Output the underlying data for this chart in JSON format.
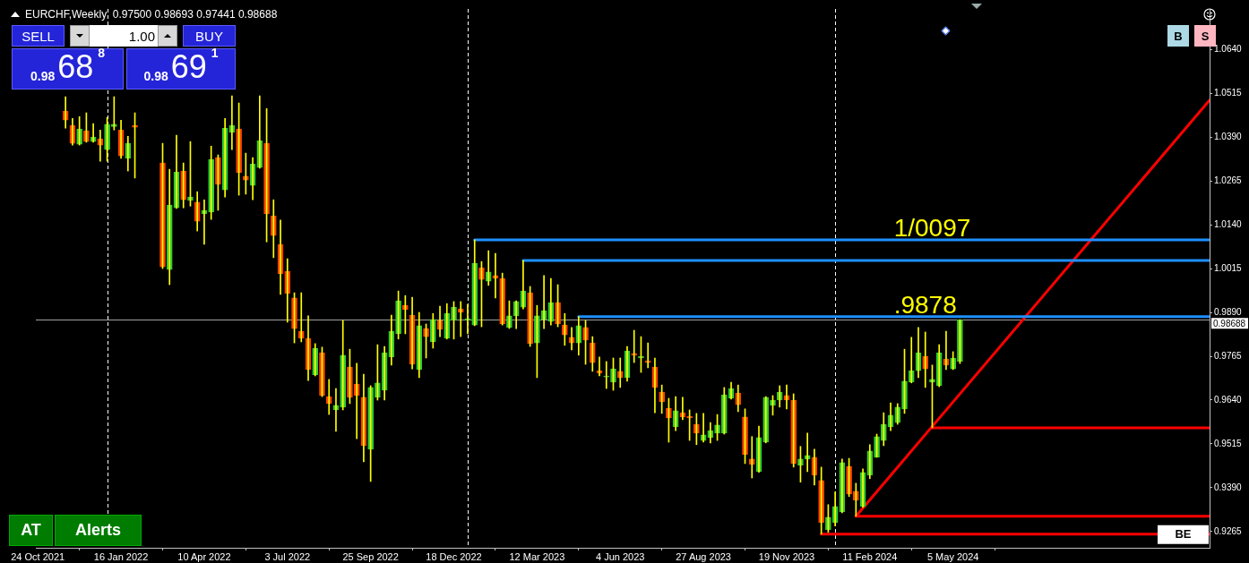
{
  "chart_data": {
    "type": "candlestick",
    "title": "EURCHF,Weekly  0.97500 0.98693 0.97441 0.98688",
    "color": "#ffff00",
    "x": [
      "2021-11-21",
      "2021-11-28",
      "2021-12-05",
      "2021-12-12",
      "2021-12-19",
      "2021-12-26",
      "2022-01-02",
      "2022-01-09",
      "2022-01-16",
      "2022-01-23",
      "2022-01-30",
      "2022-02-27",
      "2022-03-06",
      "2022-03-13",
      "2022-03-20",
      "2022-03-27",
      "2022-04-03",
      "2022-04-10",
      "2022-04-17",
      "2022-04-24",
      "2022-05-01",
      "2022-05-08",
      "2022-05-15",
      "2022-05-22",
      "2022-05-29",
      "2022-06-05",
      "2022-06-12",
      "2022-06-19",
      "2022-06-26",
      "2022-07-03",
      "2022-07-10",
      "2022-07-17",
      "2022-07-24",
      "2022-07-31",
      "2022-08-07",
      "2022-08-14",
      "2022-08-21",
      "2022-08-28",
      "2022-09-04",
      "2022-09-11",
      "2022-09-18",
      "2022-09-25",
      "2022-10-02",
      "2022-10-09",
      "2022-10-16",
      "2022-10-23",
      "2022-10-30",
      "2022-11-06",
      "2022-11-13",
      "2022-11-20",
      "2022-11-27",
      "2022-12-04",
      "2022-12-11",
      "2022-12-18",
      "2022-12-25",
      "2023-01-01",
      "2023-01-08",
      "2023-01-15",
      "2023-01-22",
      "2023-01-29",
      "2023-02-05",
      "2023-02-12",
      "2023-02-19",
      "2023-02-26",
      "2023-03-05",
      "2023-03-12",
      "2023-03-19",
      "2023-03-26",
      "2023-04-02",
      "2023-04-09",
      "2023-04-16",
      "2023-04-23",
      "2023-04-30",
      "2023-05-07",
      "2023-05-14",
      "2023-05-21",
      "2023-05-28",
      "2023-06-04",
      "2023-06-11",
      "2023-06-18",
      "2023-06-25",
      "2023-07-02",
      "2023-07-09",
      "2023-07-16",
      "2023-07-23",
      "2023-07-30",
      "2023-08-06",
      "2023-08-13",
      "2023-08-20",
      "2023-08-27",
      "2023-09-03",
      "2023-09-10",
      "2023-09-17",
      "2023-09-24",
      "2023-10-01",
      "2023-10-08",
      "2023-10-15",
      "2023-10-22",
      "2023-10-29",
      "2023-11-05",
      "2023-11-12",
      "2023-11-19",
      "2023-11-26",
      "2023-12-03",
      "2023-12-10",
      "2023-12-17",
      "2023-12-24",
      "2023-12-31",
      "2024-01-07",
      "2024-01-14",
      "2024-01-21",
      "2024-01-28",
      "2024-02-04",
      "2024-02-11",
      "2024-02-18",
      "2024-02-25",
      "2024-03-03",
      "2024-03-10",
      "2024-03-17",
      "2024-03-24",
      "2024-03-31",
      "2024-04-07",
      "2024-04-14",
      "2024-04-21",
      "2024-04-28",
      "2024-05-05",
      "2024-05-12"
    ],
    "ohlc": [
      [
        1.0464,
        1.0505,
        1.0415,
        1.0438
      ],
      [
        1.0423,
        1.0443,
        1.0367,
        1.0372
      ],
      [
        1.0369,
        1.0448,
        1.0367,
        1.0413
      ],
      [
        1.0408,
        1.0459,
        1.0375,
        1.0377
      ],
      [
        1.0377,
        1.0428,
        1.0375,
        1.039
      ],
      [
        1.0385,
        1.041,
        1.0321,
        1.0367
      ],
      [
        1.0354,
        1.0446,
        1.0321,
        1.0426
      ],
      [
        1.042,
        1.0505,
        1.041,
        1.0426
      ],
      [
        1.041,
        1.0438,
        1.0329,
        1.0336
      ],
      [
        1.0329,
        1.0392,
        1.0293,
        1.0372
      ],
      [
        1.0423,
        1.0459,
        1.0273,
        1.0418
      ],
      [
        1.0316,
        1.0372,
        1.0015,
        1.002
      ],
      [
        1.0012,
        1.0298,
        0.9969,
        1.0196
      ],
      [
        1.0188,
        1.0395,
        1.0186,
        1.029
      ],
      [
        1.0293,
        1.0316,
        1.0188,
        1.0211
      ],
      [
        1.0209,
        1.0377,
        1.0193,
        1.0219
      ],
      [
        1.0204,
        1.0234,
        1.0122,
        1.015
      ],
      [
        1.0171,
        1.0211,
        1.0084,
        1.0181
      ],
      [
        1.0176,
        1.0364,
        1.0155,
        1.0326
      ],
      [
        1.0331,
        1.0339,
        1.0181,
        1.0255
      ],
      [
        1.0239,
        1.0443,
        1.0219,
        1.0415
      ],
      [
        1.0403,
        1.0507,
        1.0354,
        1.0423
      ],
      [
        1.0413,
        1.0487,
        1.0224,
        1.0288
      ],
      [
        1.0278,
        1.0344,
        1.0227,
        1.0267
      ],
      [
        1.0252,
        1.0331,
        1.0211,
        1.0313
      ],
      [
        1.0303,
        1.0507,
        1.0301,
        1.038
      ],
      [
        1.0372,
        1.0471,
        1.0091,
        1.0171
      ],
      [
        1.0165,
        1.0211,
        1.0046,
        1.0109
      ],
      [
        1.0084,
        1.0153,
        0.9941,
        1.0
      ],
      [
        1.0007,
        1.0043,
        0.9862,
        0.9944
      ],
      [
        0.9931,
        0.9946,
        0.9803,
        0.9844
      ],
      [
        0.9836,
        0.9946,
        0.9806,
        0.9816
      ],
      [
        0.9816,
        0.988,
        0.9696,
        0.9727
      ],
      [
        0.9712,
        0.9801,
        0.9709,
        0.9788
      ],
      [
        0.9775,
        0.9791,
        0.965,
        0.9653
      ],
      [
        0.965,
        0.9699,
        0.9599,
        0.963
      ],
      [
        0.9612,
        0.9673,
        0.9551,
        0.9625
      ],
      [
        0.962,
        0.9867,
        0.9612,
        0.9768
      ],
      [
        0.9734,
        0.9785,
        0.963,
        0.9648
      ],
      [
        0.9686,
        0.9745,
        0.953,
        0.9653
      ],
      [
        0.9648,
        0.9714,
        0.9464,
        0.951
      ],
      [
        0.95,
        0.9681,
        0.9408,
        0.9676
      ],
      [
        0.9648,
        0.9798,
        0.964,
        0.9689
      ],
      [
        0.9668,
        0.9793,
        0.964,
        0.9775
      ],
      [
        0.9763,
        0.9882,
        0.974,
        0.9836
      ],
      [
        0.9829,
        0.9951,
        0.9814,
        0.9923
      ],
      [
        0.991,
        0.9938,
        0.9829,
        0.9898
      ],
      [
        0.9882,
        0.9933,
        0.9729,
        0.9742
      ],
      [
        0.9727,
        0.989,
        0.9704,
        0.9852
      ],
      [
        0.9844,
        0.9857,
        0.976,
        0.9821
      ],
      [
        0.9806,
        0.9887,
        0.9788,
        0.987
      ],
      [
        0.9867,
        0.9908,
        0.9821,
        0.9842
      ],
      [
        0.9816,
        0.9915,
        0.9814,
        0.9887
      ],
      [
        0.9867,
        0.9921,
        0.9814,
        0.9905
      ],
      [
        0.99,
        0.9921,
        0.9821,
        0.989
      ],
      [
        0.9867,
        0.9913,
        0.9829,
        0.9872
      ],
      [
        0.9854,
        1.0097,
        0.9852,
        1.003
      ],
      [
        1.0017,
        1.0035,
        0.9849,
        0.9984
      ],
      [
        0.9979,
        1.0066,
        0.9967,
        1.0005
      ],
      [
        0.9995,
        1.0058,
        0.9931,
        0.9987
      ],
      [
        0.9987,
        1.0002,
        0.9854,
        0.9857
      ],
      [
        0.9847,
        0.9923,
        0.9844,
        0.988
      ],
      [
        0.988,
        0.9923,
        0.9844,
        0.9921
      ],
      [
        0.9905,
        1.0038,
        0.99,
        0.9951
      ],
      [
        0.9946,
        0.9964,
        0.9793,
        0.9801
      ],
      [
        0.9803,
        0.991,
        0.9704,
        0.988
      ],
      [
        0.987,
        0.9995,
        0.9844,
        0.9895
      ],
      [
        0.9864,
        0.9987,
        0.9854,
        0.9918
      ],
      [
        0.9918,
        0.9969,
        0.9849,
        0.9857
      ],
      [
        0.9854,
        0.9887,
        0.9796,
        0.9826
      ],
      [
        0.9819,
        0.9847,
        0.9783,
        0.9803
      ],
      [
        0.9803,
        0.9878,
        0.9768,
        0.9852
      ],
      [
        0.9847,
        0.9867,
        0.9742,
        0.9811
      ],
      [
        0.9803,
        0.9821,
        0.9722,
        0.9747
      ],
      [
        0.9724,
        0.9763,
        0.9709,
        0.9717
      ],
      [
        0.9706,
        0.975,
        0.9673,
        0.9709
      ],
      [
        0.9691,
        0.976,
        0.9668,
        0.9729
      ],
      [
        0.9722,
        0.976,
        0.9676,
        0.9704
      ],
      [
        0.9704,
        0.9793,
        0.9694,
        0.978
      ],
      [
        0.9773,
        0.9839,
        0.9747,
        0.9768
      ],
      [
        0.976,
        0.9821,
        0.9719,
        0.9765
      ],
      [
        0.9752,
        0.9803,
        0.9732,
        0.9747
      ],
      [
        0.9734,
        0.976,
        0.9604,
        0.9676
      ],
      [
        0.9663,
        0.9683,
        0.9602,
        0.9635
      ],
      [
        0.9617,
        0.9645,
        0.952,
        0.9589
      ],
      [
        0.9564,
        0.965,
        0.9553,
        0.961
      ],
      [
        0.9604,
        0.9648,
        0.9584,
        0.9592
      ],
      [
        0.9594,
        0.9612,
        0.9525,
        0.9589
      ],
      [
        0.9571,
        0.9602,
        0.9513,
        0.9546
      ],
      [
        0.9525,
        0.9602,
        0.952,
        0.9541
      ],
      [
        0.9533,
        0.9576,
        0.9518,
        0.9553
      ],
      [
        0.9546,
        0.9599,
        0.9525,
        0.9569
      ],
      [
        0.9546,
        0.9676,
        0.9543,
        0.9655
      ],
      [
        0.9645,
        0.9691,
        0.9643,
        0.9673
      ],
      [
        0.966,
        0.9683,
        0.9607,
        0.9627
      ],
      [
        0.9592,
        0.9615,
        0.9459,
        0.9485
      ],
      [
        0.9472,
        0.9536,
        0.9418,
        0.9457
      ],
      [
        0.9436,
        0.9566,
        0.9434,
        0.9533
      ],
      [
        0.952,
        0.965,
        0.9518,
        0.9648
      ],
      [
        0.9625,
        0.9653,
        0.9597,
        0.964
      ],
      [
        0.964,
        0.9681,
        0.962,
        0.9663
      ],
      [
        0.9653,
        0.9683,
        0.9615,
        0.964
      ],
      [
        0.964,
        0.9658,
        0.9449,
        0.9459
      ],
      [
        0.9454,
        0.9508,
        0.9406,
        0.9472
      ],
      [
        0.9472,
        0.9546,
        0.9436,
        0.9482
      ],
      [
        0.9477,
        0.95,
        0.9398,
        0.9426
      ],
      [
        0.9411,
        0.9449,
        0.9258,
        0.9291
      ],
      [
        0.927,
        0.9342,
        0.9263,
        0.9306
      ],
      [
        0.9291,
        0.9378,
        0.9281,
        0.9337
      ],
      [
        0.9321,
        0.9472,
        0.9319,
        0.9462
      ],
      [
        0.9451,
        0.9474,
        0.9365,
        0.9372
      ],
      [
        0.938,
        0.9403,
        0.9309,
        0.9355
      ],
      [
        0.9337,
        0.9444,
        0.9334,
        0.9434
      ],
      [
        0.9426,
        0.9513,
        0.9416,
        0.9495
      ],
      [
        0.9477,
        0.9543,
        0.9477,
        0.9536
      ],
      [
        0.9525,
        0.9604,
        0.951,
        0.9571
      ],
      [
        0.9564,
        0.9632,
        0.9553,
        0.9597
      ],
      [
        0.9576,
        0.963,
        0.9571,
        0.962
      ],
      [
        0.9615,
        0.9785,
        0.9602,
        0.9694
      ],
      [
        0.9691,
        0.9819,
        0.9689,
        0.9724
      ],
      [
        0.9724,
        0.9847,
        0.9704,
        0.9775
      ],
      [
        0.9765,
        0.9834,
        0.9676,
        0.9729
      ],
      [
        0.9691,
        0.974,
        0.9561,
        0.9699
      ],
      [
        0.9681,
        0.9798,
        0.9678,
        0.9775
      ],
      [
        0.9757,
        0.9836,
        0.9727,
        0.974
      ],
      [
        0.9729,
        0.9778,
        0.9727,
        0.976
      ],
      [
        0.975,
        0.98693,
        0.97441,
        0.98688
      ]
    ],
    "colors": [
      "#ff4500",
      "#ff4500",
      "#32cd32",
      "#ff4500",
      "#32cd32",
      "#ff4500",
      "#32cd32",
      "#32cd32",
      "#ff4500",
      "#32cd32",
      "#ff4500",
      "#ff4500",
      "#32cd32",
      "#32cd32",
      "#ff4500",
      "#32cd32",
      "#ff4500",
      "#32cd32",
      "#32cd32",
      "#ff4500",
      "#32cd32",
      "#32cd32",
      "#ff4500",
      "#ff4500",
      "#32cd32",
      "#32cd32",
      "#ff4500",
      "#ff4500",
      "#ff4500",
      "#ff4500",
      "#ff4500",
      "#ff4500",
      "#ff4500",
      "#32cd32",
      "#ff4500",
      "#ff4500",
      "#32cd32",
      "#32cd32",
      "#ff4500",
      "#ff4500",
      "#ff4500",
      "#32cd32",
      "#32cd32",
      "#32cd32",
      "#32cd32",
      "#32cd32",
      "#ff4500",
      "#ff4500",
      "#32cd32",
      "#ff4500",
      "#32cd32",
      "#ff4500",
      "#32cd32",
      "#32cd32",
      "#ff4500",
      "#32cd32",
      "#32cd32",
      "#ff4500",
      "#32cd32",
      "#ff4500",
      "#ff4500",
      "#32cd32",
      "#32cd32",
      "#32cd32",
      "#ff4500",
      "#32cd32",
      "#32cd32",
      "#32cd32",
      "#ff4500",
      "#ff4500",
      "#ff4500",
      "#32cd32",
      "#ff4500",
      "#ff4500",
      "#ff4500",
      "#32cd32",
      "#32cd32",
      "#ff4500",
      "#32cd32",
      "#ff4500",
      "#32cd32",
      "#ff4500",
      "#ff4500",
      "#ff4500",
      "#ff4500",
      "#32cd32",
      "#ff4500",
      "#ff4500",
      "#ff4500",
      "#32cd32",
      "#32cd32",
      "#32cd32",
      "#32cd32",
      "#32cd32",
      "#ff4500",
      "#ff4500",
      "#ff4500",
      "#32cd32",
      "#32cd32",
      "#32cd32",
      "#32cd32",
      "#ff4500",
      "#ff4500",
      "#32cd32",
      "#32cd32",
      "#ff4500",
      "#ff4500",
      "#32cd32",
      "#32cd32",
      "#32cd32",
      "#ff4500",
      "#ff4500",
      "#32cd32",
      "#32cd32",
      "#32cd32",
      "#32cd32",
      "#32cd32",
      "#32cd32",
      "#32cd32",
      "#32cd32",
      "#32cd32",
      "#ff4500",
      "#32cd32",
      "#32cd32",
      "#ff4500",
      "#32cd32",
      "#32cd32"
    ],
    "series": [
      {
        "type": "line",
        "color": "#1e90ff",
        "x": [
          "2023-01-08",
          "2025-01-19"
        ],
        "values": [
          1.0097,
          1.0097
        ]
      },
      {
        "type": "line",
        "color": "#1e90ff",
        "x": [
          "2023-02-26",
          "2025-01-19"
        ],
        "values": [
          1.0038,
          1.0038
        ]
      },
      {
        "type": "line",
        "color": "#1e90ff",
        "x": [
          "2023-04-23",
          "2025-01-19"
        ],
        "values": [
          0.9878,
          0.9878
        ]
      },
      {
        "type": "line",
        "color": "#ff0000",
        "x": [
          "2024-01-28",
          "2025-01-19"
        ],
        "values": [
          0.9309,
          1.0495
        ]
      },
      {
        "type": "line",
        "color": "#ff0000",
        "x": [
          "2024-01-28",
          "2025-01-19"
        ],
        "values": [
          0.9309,
          0.9309
        ]
      },
      {
        "type": "line",
        "color": "#ff0000",
        "name": "BE",
        "x": [
          "2023-12-24",
          "2025-01-19"
        ],
        "values": [
          0.9258,
          0.9258
        ]
      },
      {
        "type": "line",
        "color": "#ff0000",
        "x": [
          "2024-04-14",
          "2025-01-19"
        ],
        "values": [
          0.9561,
          0.9561
        ]
      }
    ],
    "xlim": [
      "2021-10-22",
      "2025-01-19"
    ],
    "xticks": [
      {
        "value": "2021-10-24",
        "label": "24 Oct 2021"
      },
      {
        "value": "2022-01-16",
        "label": "16 Jan 2022"
      },
      {
        "value": "2022-04-10",
        "label": "10 Apr 2022"
      },
      {
        "value": "2022-07-03",
        "label": "3 Jul 2022"
      },
      {
        "value": "2022-09-25",
        "label": "25 Sep 2022"
      },
      {
        "value": "2022-12-18",
        "label": "18 Dec 2022"
      },
      {
        "value": "2023-03-12",
        "label": "12 Mar 2023"
      },
      {
        "value": "2023-06-04",
        "label": "4 Jun 2023"
      },
      {
        "value": "2023-08-27",
        "label": "27 Aug 2023"
      },
      {
        "value": "2023-11-19",
        "label": "19 Nov 2023"
      },
      {
        "value": "2024-02-11",
        "label": "11 Feb 2024"
      },
      {
        "value": "2024-05-05",
        "label": "5 May 2024"
      }
    ],
    "ylim": [
      0.9219,
      1.0755
    ],
    "yticks": [
      {
        "value": 1.064,
        "label": "1.0640"
      },
      {
        "value": 1.0515,
        "label": "1.0515"
      },
      {
        "value": 1.039,
        "label": "1.0390"
      },
      {
        "value": 1.0265,
        "label": "1.0265"
      },
      {
        "value": 1.014,
        "label": "1.0140"
      },
      {
        "value": 1.0015,
        "label": "1.0015"
      },
      {
        "value": 0.989,
        "label": "0.9890"
      },
      {
        "value": 0.9765,
        "label": "0.9765"
      },
      {
        "value": 0.964,
        "label": "0.9640"
      },
      {
        "value": 0.9515,
        "label": "0.9515"
      },
      {
        "value": 0.939,
        "label": "0.9390"
      },
      {
        "value": 0.9265,
        "label": "0.9265"
      }
    ],
    "ref_lines": [
      {
        "axis": "y",
        "value": 0.98688,
        "label": "0.98688",
        "color": "#a0a0a0"
      },
      {
        "axis": "x",
        "value": "2022-01-02",
        "color": "#ffffff",
        "line_style": "dashed"
      },
      {
        "axis": "x",
        "value": "2023-01-01",
        "color": "#ffffff",
        "line_style": "dashed"
      },
      {
        "axis": "x",
        "value": "2024-01-07",
        "color": "#ffffff",
        "line_style": "dashed"
      }
    ],
    "annotations": [
      "SELL",
      "BUY",
      "1.00",
      "0.98",
      "68",
      "8",
      "0.98",
      "69",
      "1",
      "AT",
      "Alerts",
      "B",
      "S",
      {
        "text": "1/0097",
        "x": "2024-04-14",
        "y": 1.0097
      },
      {
        "text": ".9878",
        "x": "2024-04-07",
        "y": 0.9878
      }
    ]
  }
}
